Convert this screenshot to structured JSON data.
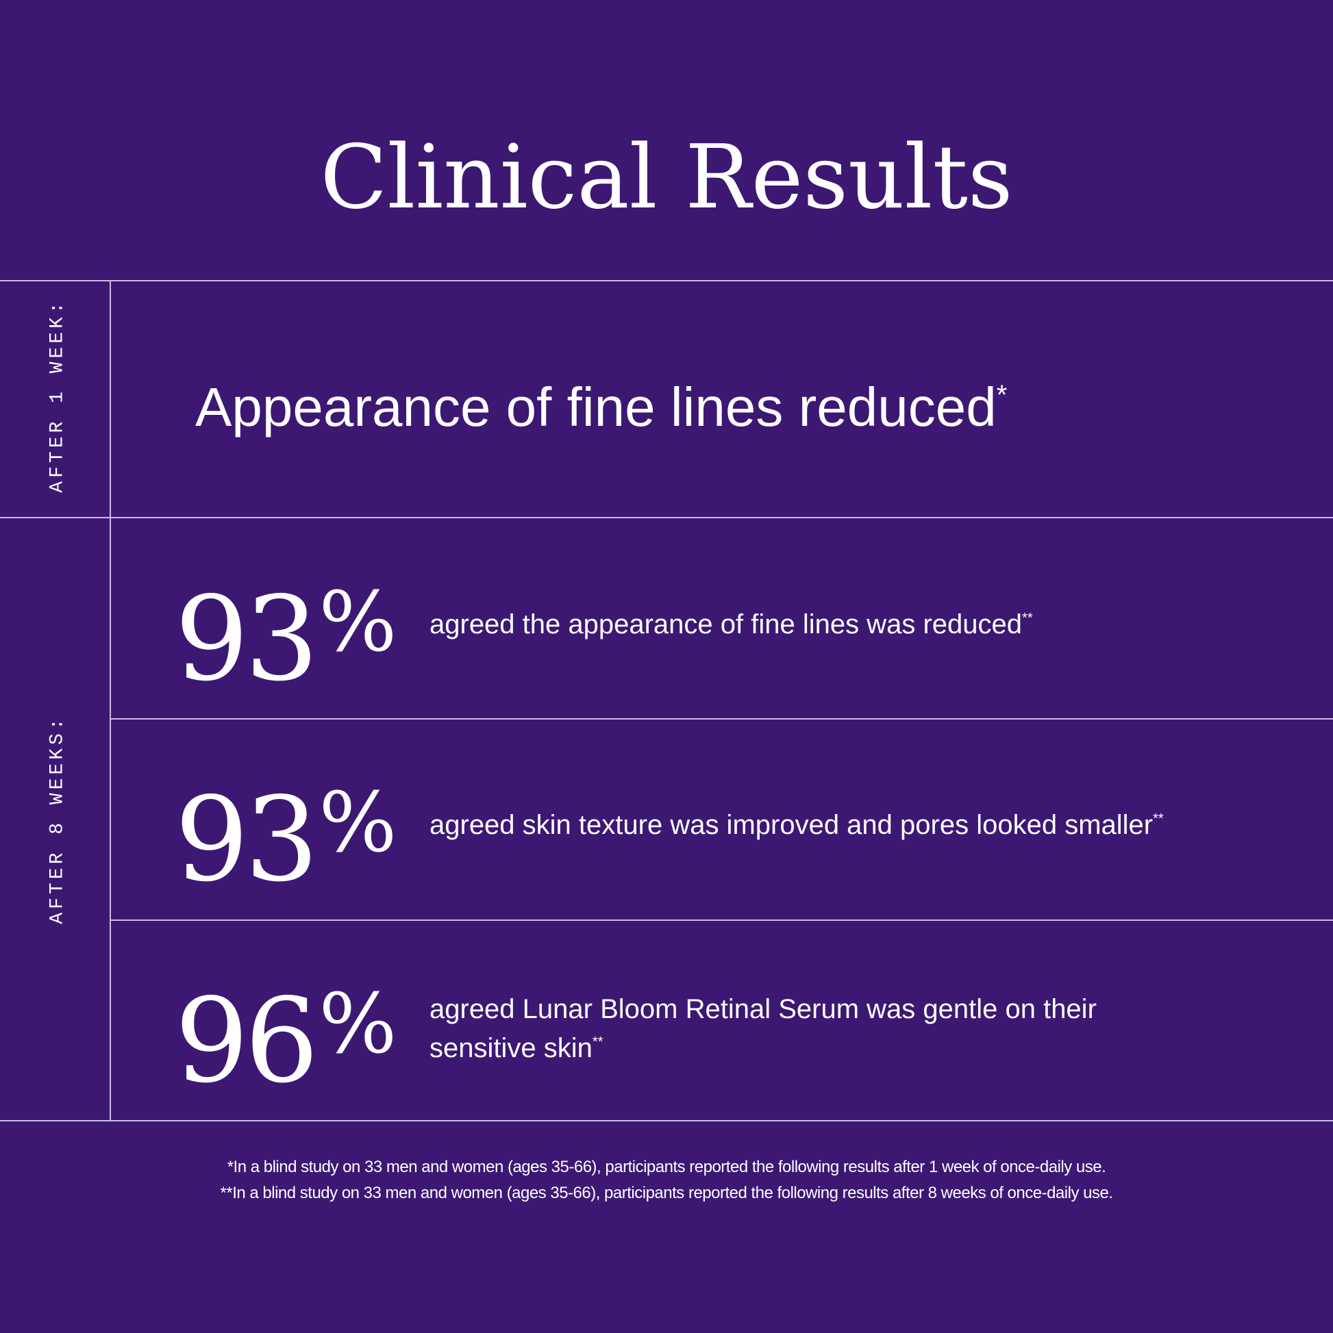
{
  "title": "Clinical Results",
  "colors": {
    "background": "#3c1873",
    "divider": "#cbbde6",
    "text": "#ffffff"
  },
  "sections": [
    {
      "label": "AFTER 1 WEEK:",
      "stat": {
        "text": "Appearance of fine lines reduced",
        "mark": "*"
      }
    },
    {
      "label": "AFTER 8 WEEKS:",
      "results": [
        {
          "value": "93",
          "unit": "%",
          "text": "agreed the appearance of fine lines was reduced",
          "mark": "**"
        },
        {
          "value": "93",
          "unit": "%",
          "text": "agreed skin texture was improved and pores looked smaller",
          "mark": "**"
        },
        {
          "value": "96",
          "unit": "%",
          "text": "agreed Lunar Bloom Retinal Serum was gentle on their sensitive skin",
          "mark": "**"
        }
      ]
    }
  ],
  "footnotes": [
    "*In a blind study on 33 men and women (ages 35-66), participants reported the following results after 1 week of once-daily use.",
    "**In a blind study on 33 men and women (ages 35-66), participants reported the following results after 8 weeks of once-daily use."
  ]
}
